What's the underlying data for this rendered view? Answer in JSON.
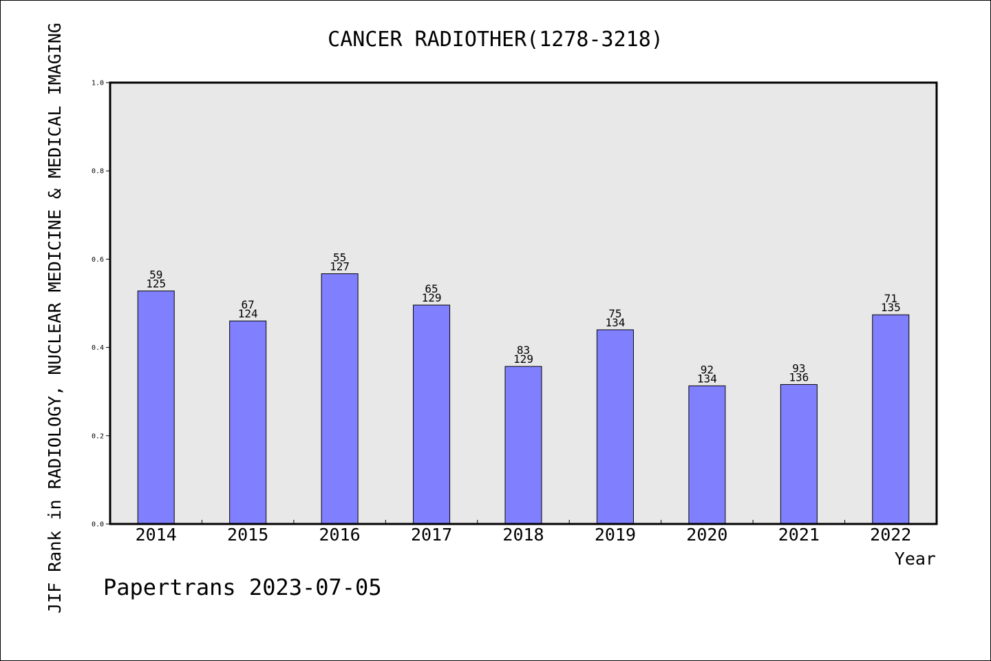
{
  "chart_data": {
    "type": "bar",
    "title": "CANCER RADIOTHER(1278-3218)",
    "xlabel": "Year",
    "ylabel": "JIF Rank in RADIOLOGY, NUCLEAR MEDICINE & MEDICAL IMAGING",
    "categories": [
      "2014",
      "2015",
      "2016",
      "2017",
      "2018",
      "2019",
      "2020",
      "2021",
      "2022"
    ],
    "values": [
      0.528,
      0.46,
      0.567,
      0.496,
      0.357,
      0.44,
      0.313,
      0.316,
      0.474
    ],
    "labels": [
      {
        "rank": "59",
        "total": "125"
      },
      {
        "rank": "67",
        "total": "124"
      },
      {
        "rank": "55",
        "total": "127"
      },
      {
        "rank": "65",
        "total": "129"
      },
      {
        "rank": "83",
        "total": "129"
      },
      {
        "rank": "75",
        "total": "134"
      },
      {
        "rank": "92",
        "total": "134"
      },
      {
        "rank": "93",
        "total": "136"
      },
      {
        "rank": "71",
        "total": "135"
      }
    ],
    "ylim": [
      0,
      1
    ],
    "yticks": [
      "0.0",
      "0.2",
      "0.4",
      "0.6",
      "0.8",
      "1.0"
    ],
    "grid": false,
    "bar_color": "#8080ff",
    "plot_background": "#e8e8e8"
  },
  "watermark": "Papertrans 2023-07-05"
}
